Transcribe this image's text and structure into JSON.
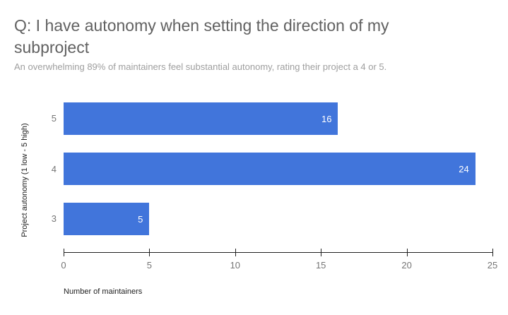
{
  "header": {
    "title": "Q: I have autonomy when setting the direction of my subproject",
    "subtitle": "An overwhelming 89% of maintainers feel substantial autonomy, rating their project a 4 or 5."
  },
  "chart_data": {
    "type": "bar",
    "orientation": "horizontal",
    "title": "Q: I have autonomy when setting the direction of my subproject",
    "subtitle": "An overwhelming 89% of maintainers feel substantial autonomy, rating their project a 4 or 5.",
    "categories": [
      "5",
      "4",
      "3"
    ],
    "values": [
      16,
      24,
      5
    ],
    "xlabel": "Number of maintainers",
    "ylabel": "Project autonomy (1 low - 5 high)",
    "xlim": [
      0,
      25
    ],
    "xticks": [
      "0",
      "5",
      "10",
      "15",
      "20",
      "25"
    ],
    "bar_color": "#4175db",
    "value_label_color": "#ffffff",
    "grid": false,
    "legend": "none",
    "background": "#ffffff"
  }
}
